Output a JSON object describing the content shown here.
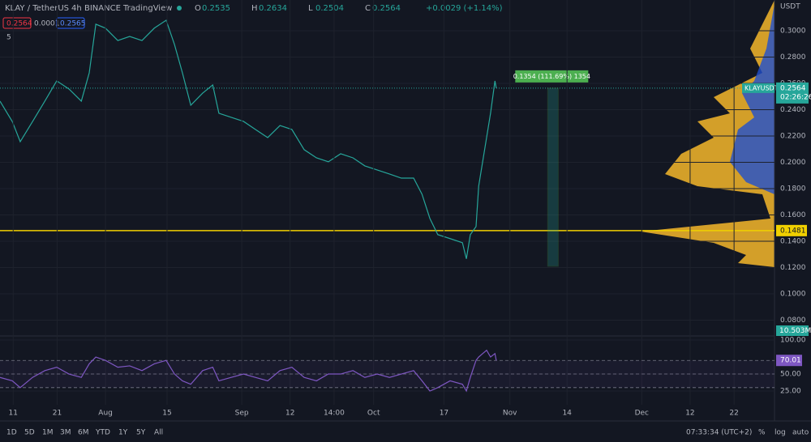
{
  "header": {
    "symbol": "KLAY / TetherUS",
    "interval": "4h",
    "exchange": "BINANCE",
    "source": "TradingView",
    "ohlc": [
      {
        "key": "O",
        "value": "0.2535"
      },
      {
        "key": "H",
        "value": "0.2634"
      },
      {
        "key": "L",
        "value": "0.2504"
      },
      {
        "key": "C",
        "value": "0.2564"
      }
    ],
    "change": "+0.0029 (+1.14%)",
    "boxes": [
      "0.2564",
      "0.0001",
      "0.2565"
    ],
    "indicators": "5"
  },
  "chart_data": [
    {
      "type": "line",
      "currency": "USDT",
      "symbol_tag": "KLAYUSDT",
      "countdown": "02:26:26",
      "volume": "10.503M",
      "x": [
        -24,
        -21.2,
        -19.4,
        -16.6,
        -13.8,
        -11.1,
        -8.3,
        -5.5,
        -3.7,
        -2.2,
        0,
        2.8,
        5.5,
        8.3,
        11.1,
        13.8,
        15.7,
        17.5,
        19.4,
        22.1,
        24.4,
        25.8,
        28.6,
        31.4,
        34.1,
        36.9,
        39.7,
        42.4,
        45.2,
        48,
        50.7,
        53.5,
        56.3,
        59,
        61.8,
        64.6,
        67.3,
        70.1,
        72,
        73.8,
        75.6,
        78.4,
        81.2,
        82.1,
        83,
        84.3,
        84.9,
        85.8,
        86.7,
        87.6,
        88.6,
        88.9
      ],
      "series": [
        {
          "name": "KLAYUSDT",
          "color": "#26a69a",
          "values": [
            0.2465,
            0.231,
            0.2157,
            0.231,
            0.2465,
            0.2619,
            0.2557,
            0.2465,
            0.268,
            0.305,
            0.302,
            0.2926,
            0.2957,
            0.2926,
            0.302,
            0.308,
            0.2895,
            0.268,
            0.2434,
            0.2526,
            0.2588,
            0.2373,
            0.2342,
            0.2311,
            0.225,
            0.2188,
            0.228,
            0.225,
            0.2096,
            0.2034,
            0.2004,
            0.2065,
            0.2034,
            0.1973,
            0.1942,
            0.1911,
            0.188,
            0.188,
            0.1758,
            0.1573,
            0.145,
            0.142,
            0.1389,
            0.1266,
            0.145,
            0.1512,
            0.1819,
            0.2004,
            0.2188,
            0.2373,
            0.2619,
            0.2564
          ]
        }
      ],
      "xlim": [
        -24,
        152.2
      ],
      "ylim": [
        0.068,
        0.3234
      ],
      "yticks": [
        {
          "value": 0.3,
          "label": "0.3000"
        },
        {
          "value": 0.28,
          "label": "0.2800"
        },
        {
          "value": 0.26,
          "label": "0.2600"
        },
        {
          "value": 0.24,
          "label": "0.2400"
        },
        {
          "value": 0.22,
          "label": "0.2200"
        },
        {
          "value": 0.2,
          "label": "0.2000"
        },
        {
          "value": 0.18,
          "label": "0.1800"
        },
        {
          "value": 0.16,
          "label": "0.1600"
        },
        {
          "value": 0.14,
          "label": "0.1400"
        },
        {
          "value": 0.12,
          "label": "0.1200"
        },
        {
          "value": 0.1,
          "label": "0.1000"
        },
        {
          "value": 0.08,
          "label": "0.0800"
        }
      ],
      "hline": 0.1481,
      "hline_color": "#f0d000",
      "measure": {
        "label": "0.1354 (111.69%) 1354",
        "from": 0.121,
        "to": 0.2564,
        "x_range": [
          100.6,
          103
        ]
      },
      "grid": true
    },
    {
      "type": "line",
      "x": [
        -24,
        -21.2,
        -19.4,
        -16.6,
        -13.8,
        -11.1,
        -8.3,
        -5.5,
        -3.7,
        -2.2,
        0,
        2.8,
        5.5,
        8.3,
        11.1,
        13.8,
        15.7,
        17.5,
        19.4,
        22.1,
        24.4,
        25.8,
        28.6,
        31.4,
        34.1,
        36.9,
        39.7,
        42.4,
        45.2,
        48,
        50.7,
        53.5,
        56.3,
        59,
        61.8,
        64.6,
        67.3,
        70.1,
        72,
        73.8,
        75.6,
        78.4,
        81.2,
        82.1,
        83,
        84.3,
        84.9,
        85.8,
        86.7,
        87.6,
        88.6,
        88.9
      ],
      "series": [
        {
          "name": "RSI",
          "color": "#7e57c2",
          "values": [
            45,
            40,
            30,
            45,
            55,
            60,
            50,
            45,
            65,
            75,
            70,
            60,
            62,
            55,
            65,
            70,
            50,
            40,
            35,
            55,
            60,
            40,
            45,
            50,
            45,
            40,
            55,
            60,
            45,
            40,
            50,
            50,
            55,
            45,
            50,
            45,
            50,
            55,
            40,
            25,
            30,
            40,
            35,
            25,
            45,
            70,
            75,
            80,
            85,
            75,
            80,
            70.01
          ]
        }
      ],
      "xlim": [
        -24,
        152.2
      ],
      "ylim": [
        4.8,
        102.4
      ],
      "yticks": [
        {
          "value": 100,
          "label": "100.00"
        },
        {
          "value": 50,
          "label": "50.00"
        },
        {
          "value": 25,
          "label": "25.00"
        }
      ],
      "levels": [
        70,
        50,
        30
      ],
      "xticks": [
        {
          "value": -21,
          "label": "11"
        },
        {
          "value": -11,
          "label": "21"
        },
        {
          "value": 0,
          "label": "Aug"
        },
        {
          "value": 14,
          "label": "15"
        },
        {
          "value": 31,
          "label": "Sep"
        },
        {
          "value": 42,
          "label": "12"
        },
        {
          "value": 52,
          "label": "14:00"
        },
        {
          "value": 61,
          "label": "Oct"
        },
        {
          "value": 77,
          "label": "17"
        },
        {
          "value": 92,
          "label": "Nov"
        },
        {
          "value": 105,
          "label": "14"
        },
        {
          "value": 122,
          "label": "Dec"
        },
        {
          "value": 133,
          "label": "12"
        },
        {
          "value": 143,
          "label": "22"
        }
      ],
      "grid": true
    }
  ],
  "toolbar": {
    "ranges": [
      "1D",
      "5D",
      "1M",
      "3M",
      "6M",
      "YTD",
      "1Y",
      "5Y",
      "All"
    ],
    "time": "07:33:34 (UTC+2)",
    "options": [
      "%",
      "log",
      "auto"
    ]
  }
}
